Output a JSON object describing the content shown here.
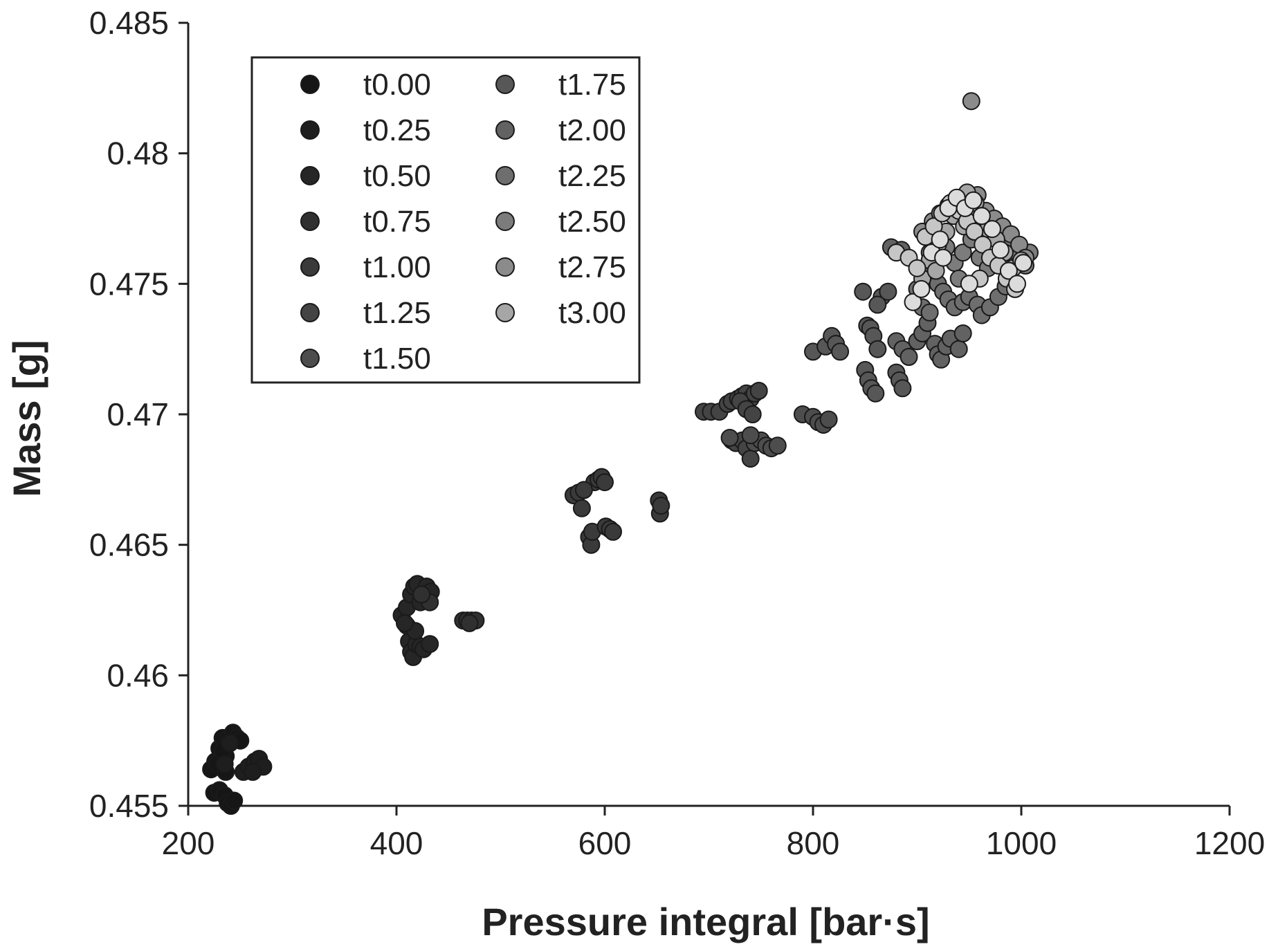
{
  "chart_data": {
    "type": "scatter",
    "xlabel": "Pressure integral [bar·s]",
    "ylabel": "Mass [g]",
    "xlim": [
      200,
      1200
    ],
    "ylim": [
      0.455,
      0.485
    ],
    "xticks": [
      "200",
      "400",
      "600",
      "800",
      "1000",
      "1200"
    ],
    "yticks": [
      "0.455",
      "0.46",
      "0.465",
      "0.47",
      "0.475",
      "0.48",
      "0.485"
    ],
    "grid": false,
    "legend_placement": "top-left",
    "legend_columns": 2,
    "series": [
      {
        "name": "t0.00",
        "color": "#161616",
        "points": [
          [
            222,
            0.4564
          ],
          [
            226,
            0.4567
          ],
          [
            230,
            0.4572
          ],
          [
            233,
            0.4576
          ],
          [
            236,
            0.4569
          ],
          [
            239,
            0.4576
          ],
          [
            243,
            0.4578
          ],
          [
            247,
            0.4576
          ],
          [
            250,
            0.4575
          ],
          [
            225,
            0.4555
          ],
          [
            230,
            0.4556
          ],
          [
            235,
            0.4554
          ],
          [
            238,
            0.4551
          ],
          [
            241,
            0.455
          ],
          [
            244,
            0.4552
          ],
          [
            228,
            0.4566
          ],
          [
            236,
            0.4563
          ],
          [
            233,
            0.4571
          ]
        ]
      },
      {
        "name": "t0.25",
        "color": "#1e1e1e",
        "points": [
          [
            253,
            0.4563
          ],
          [
            258,
            0.4565
          ],
          [
            264,
            0.4567
          ],
          [
            268,
            0.4568
          ],
          [
            272,
            0.4565
          ],
          [
            262,
            0.4563
          ],
          [
            240,
            0.4574
          ],
          [
            235,
            0.4566
          ]
        ]
      },
      {
        "name": "t0.50",
        "color": "#262626",
        "points": [
          [
            405,
            0.4623
          ],
          [
            410,
            0.4619
          ],
          [
            412,
            0.4613
          ],
          [
            414,
            0.4609
          ],
          [
            416,
            0.4607
          ],
          [
            419,
            0.4612
          ],
          [
            423,
            0.4611
          ],
          [
            426,
            0.461
          ],
          [
            432,
            0.4612
          ],
          [
            410,
            0.4626
          ],
          [
            414,
            0.4631
          ],
          [
            417,
            0.4634
          ],
          [
            420,
            0.4635
          ],
          [
            423,
            0.4628
          ],
          [
            429,
            0.4634
          ],
          [
            433,
            0.4632
          ],
          [
            418,
            0.4617
          ],
          [
            408,
            0.462
          ]
        ]
      },
      {
        "name": "t0.75",
        "color": "#303030",
        "points": [
          [
            464,
            0.4621
          ],
          [
            468,
            0.4621
          ],
          [
            472,
            0.4621
          ],
          [
            476,
            0.4621
          ],
          [
            470,
            0.462
          ],
          [
            432,
            0.4628
          ],
          [
            424,
            0.4631
          ]
        ]
      },
      {
        "name": "t1.00",
        "color": "#3a3a3a",
        "points": [
          [
            570,
            0.4669
          ],
          [
            575,
            0.467
          ],
          [
            578,
            0.4664
          ],
          [
            585,
            0.4653
          ],
          [
            587,
            0.465
          ],
          [
            588,
            0.4655
          ],
          [
            590,
            0.4674
          ],
          [
            594,
            0.4675
          ],
          [
            597,
            0.4676
          ],
          [
            600,
            0.4674
          ],
          [
            601,
            0.4657
          ],
          [
            605,
            0.4656
          ],
          [
            608,
            0.4655
          ],
          [
            652,
            0.4667
          ],
          [
            653,
            0.4662
          ],
          [
            654,
            0.4665
          ],
          [
            580,
            0.4671
          ]
        ]
      },
      {
        "name": "t1.25",
        "color": "#444444",
        "points": [
          [
            695,
            0.4701
          ],
          [
            702,
            0.4701
          ],
          [
            710,
            0.4701
          ],
          [
            718,
            0.4704
          ],
          [
            722,
            0.4705
          ],
          [
            728,
            0.4706
          ],
          [
            732,
            0.4707
          ],
          [
            736,
            0.4708
          ],
          [
            740,
            0.4706
          ],
          [
            744,
            0.4708
          ],
          [
            748,
            0.4709
          ],
          [
            730,
            0.4705
          ],
          [
            736,
            0.4702
          ],
          [
            742,
            0.47
          ],
          [
            722,
            0.469
          ],
          [
            726,
            0.4689
          ],
          [
            732,
            0.469
          ],
          [
            736,
            0.4687
          ],
          [
            740,
            0.4683
          ]
        ]
      },
      {
        "name": "t1.50",
        "color": "#4d4d4d",
        "points": [
          [
            744,
            0.4689
          ],
          [
            750,
            0.469
          ],
          [
            755,
            0.4688
          ],
          [
            760,
            0.4687
          ],
          [
            766,
            0.4688
          ],
          [
            790,
            0.47
          ],
          [
            800,
            0.4699
          ],
          [
            805,
            0.4697
          ],
          [
            810,
            0.4696
          ],
          [
            815,
            0.4698
          ],
          [
            720,
            0.4691
          ],
          [
            740,
            0.4692
          ]
        ]
      },
      {
        "name": "t1.75",
        "color": "#575757",
        "points": [
          [
            800,
            0.4724
          ],
          [
            812,
            0.4726
          ],
          [
            818,
            0.473
          ],
          [
            822,
            0.4727
          ],
          [
            826,
            0.4724
          ],
          [
            848,
            0.4747
          ],
          [
            852,
            0.4734
          ],
          [
            855,
            0.4733
          ],
          [
            858,
            0.473
          ],
          [
            862,
            0.4725
          ],
          [
            866,
            0.4745
          ],
          [
            872,
            0.4747
          ],
          [
            850,
            0.4717
          ],
          [
            853,
            0.4713
          ],
          [
            856,
            0.471
          ],
          [
            860,
            0.4708
          ],
          [
            880,
            0.4716
          ],
          [
            883,
            0.4713
          ],
          [
            886,
            0.471
          ],
          [
            862,
            0.4742
          ]
        ]
      },
      {
        "name": "t2.00",
        "color": "#626262",
        "points": [
          [
            880,
            0.4728
          ],
          [
            886,
            0.4725
          ],
          [
            892,
            0.4722
          ],
          [
            900,
            0.4728
          ],
          [
            905,
            0.4731
          ],
          [
            910,
            0.4735
          ],
          [
            917,
            0.4727
          ],
          [
            920,
            0.4723
          ],
          [
            923,
            0.4721
          ],
          [
            928,
            0.4726
          ],
          [
            932,
            0.4729
          ],
          [
            940,
            0.4725
          ],
          [
            944,
            0.4731
          ],
          [
            875,
            0.4764
          ],
          [
            880,
            0.4762
          ],
          [
            885,
            0.4763
          ]
        ]
      },
      {
        "name": "t2.25",
        "color": "#6e6e6e",
        "points": [
          [
            900,
            0.4748
          ],
          [
            908,
            0.4752
          ],
          [
            915,
            0.4755
          ],
          [
            920,
            0.475
          ],
          [
            925,
            0.4747
          ],
          [
            930,
            0.4744
          ],
          [
            936,
            0.4741
          ],
          [
            944,
            0.4743
          ],
          [
            950,
            0.4745
          ],
          [
            958,
            0.4742
          ],
          [
            962,
            0.4738
          ],
          [
            970,
            0.4741
          ],
          [
            978,
            0.4745
          ],
          [
            985,
            0.4749
          ],
          [
            905,
            0.4741
          ],
          [
            912,
            0.4739
          ]
        ]
      },
      {
        "name": "t2.50",
        "color": "#7c7c7c",
        "points": [
          [
            912,
            0.4762
          ],
          [
            920,
            0.476
          ],
          [
            928,
            0.4764
          ],
          [
            936,
            0.4758
          ],
          [
            944,
            0.4762
          ],
          [
            952,
            0.4767
          ],
          [
            960,
            0.476
          ],
          [
            968,
            0.4756
          ],
          [
            976,
            0.4759
          ],
          [
            985,
            0.4764
          ],
          [
            992,
            0.4758
          ],
          [
            998,
            0.4761
          ],
          [
            1004,
            0.4757
          ],
          [
            1008,
            0.4762
          ],
          [
            940,
            0.4752
          ],
          [
            955,
            0.477
          ]
        ]
      },
      {
        "name": "t2.75",
        "color": "#8b8b8b",
        "points": [
          [
            905,
            0.477
          ],
          [
            915,
            0.4774
          ],
          [
            922,
            0.4777
          ],
          [
            930,
            0.478
          ],
          [
            938,
            0.4776
          ],
          [
            946,
            0.4783
          ],
          [
            950,
            0.4779
          ],
          [
            958,
            0.4784
          ],
          [
            966,
            0.4778
          ],
          [
            974,
            0.4775
          ],
          [
            982,
            0.4772
          ],
          [
            990,
            0.4769
          ],
          [
            998,
            0.4765
          ],
          [
            1004,
            0.476
          ],
          [
            952,
            0.482
          ],
          [
            970,
            0.4768
          ]
        ]
      },
      {
        "name": "t3.00",
        "color": "#a6a6a6",
        "points": [
          [
            905,
            0.4752
          ],
          [
            912,
            0.4759
          ],
          [
            920,
            0.4765
          ],
          [
            928,
            0.477
          ],
          [
            935,
            0.4776
          ],
          [
            940,
            0.4782
          ],
          [
            948,
            0.4785
          ],
          [
            956,
            0.4781
          ],
          [
            962,
            0.4776
          ],
          [
            968,
            0.4771
          ],
          [
            976,
            0.4767
          ],
          [
            984,
            0.4762
          ],
          [
            992,
            0.4756
          ],
          [
            1000,
            0.4759
          ],
          [
            918,
            0.4755
          ],
          [
            945,
            0.4772
          ]
        ]
      },
      {
        "name": "",
        "color": "#c6c6c6",
        "points": [
          [
            880,
            0.4762
          ],
          [
            892,
            0.476
          ],
          [
            900,
            0.4756
          ],
          [
            908,
            0.4768
          ],
          [
            916,
            0.4772
          ],
          [
            924,
            0.4777
          ],
          [
            932,
            0.4781
          ],
          [
            940,
            0.4778
          ],
          [
            948,
            0.4774
          ],
          [
            955,
            0.477
          ],
          [
            963,
            0.4765
          ],
          [
            970,
            0.476
          ],
          [
            978,
            0.4757
          ],
          [
            986,
            0.4752
          ],
          [
            994,
            0.4748
          ],
          [
            960,
            0.4752
          ]
        ]
      },
      {
        "name": "",
        "color": "#dcdcdc",
        "points": [
          [
            896,
            0.4743
          ],
          [
            904,
            0.4748
          ],
          [
            914,
            0.4762
          ],
          [
            922,
            0.4767
          ],
          [
            930,
            0.4779
          ],
          [
            938,
            0.4783
          ],
          [
            946,
            0.4779
          ],
          [
            954,
            0.4782
          ],
          [
            962,
            0.4776
          ],
          [
            972,
            0.4771
          ],
          [
            980,
            0.4763
          ],
          [
            988,
            0.4755
          ],
          [
            996,
            0.475
          ],
          [
            1002,
            0.4758
          ],
          [
            950,
            0.475
          ],
          [
            925,
            0.476
          ]
        ]
      }
    ]
  }
}
